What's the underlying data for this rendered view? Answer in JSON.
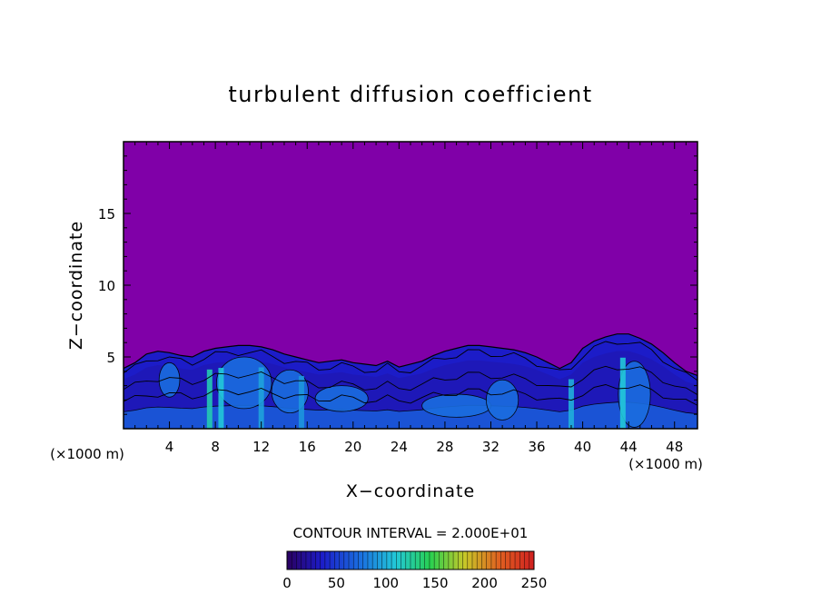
{
  "chart_data": {
    "type": "heatmap",
    "title": "turbulent diffusion coefficient",
    "xlabel": "X−coordinate",
    "ylabel": "Z−coordinate",
    "x_unit_label": "(×1000 m)",
    "z_unit_label": "(×1000 m)",
    "xlim": [
      0,
      50
    ],
    "ylim": [
      0,
      20
    ],
    "x_ticks": [
      {
        "value": 4,
        "label": "4"
      },
      {
        "value": 8,
        "label": "8"
      },
      {
        "value": 12,
        "label": "12"
      },
      {
        "value": 16,
        "label": "16"
      },
      {
        "value": 20,
        "label": "20"
      },
      {
        "value": 24,
        "label": "24"
      },
      {
        "value": 28,
        "label": "28"
      },
      {
        "value": 32,
        "label": "32"
      },
      {
        "value": 36,
        "label": "36"
      },
      {
        "value": 40,
        "label": "40"
      },
      {
        "value": 44,
        "label": "44"
      },
      {
        "value": 48,
        "label": "48"
      }
    ],
    "y_ticks": [
      {
        "value": 5,
        "label": "5"
      },
      {
        "value": 10,
        "label": "10"
      },
      {
        "value": 15,
        "label": "15"
      }
    ],
    "contour_interval_label": "CONTOUR INTERVAL = 2.000E+01",
    "contour_interval": 20,
    "colorbar": {
      "min": 0,
      "max": 250,
      "ticks": [
        {
          "value": 0,
          "label": "0"
        },
        {
          "value": 50,
          "label": "50"
        },
        {
          "value": 100,
          "label": "100"
        },
        {
          "value": 150,
          "label": "150"
        },
        {
          "value": 200,
          "label": "200"
        },
        {
          "value": 250,
          "label": "250"
        }
      ]
    },
    "background_color": "#8000a8",
    "boundary_layer_top": [
      [
        0,
        4.2
      ],
      [
        1,
        4.6
      ],
      [
        2,
        5.2
      ],
      [
        3,
        5.4
      ],
      [
        4,
        5.3
      ],
      [
        5,
        5.1
      ],
      [
        6,
        5.0
      ],
      [
        7,
        5.4
      ],
      [
        8,
        5.6
      ],
      [
        9,
        5.7
      ],
      [
        10,
        5.8
      ],
      [
        11,
        5.8
      ],
      [
        12,
        5.7
      ],
      [
        13,
        5.5
      ],
      [
        14,
        5.2
      ],
      [
        15,
        5.0
      ],
      [
        16,
        4.8
      ],
      [
        17,
        4.6
      ],
      [
        18,
        4.7
      ],
      [
        19,
        4.8
      ],
      [
        20,
        4.6
      ],
      [
        21,
        4.5
      ],
      [
        22,
        4.4
      ],
      [
        23,
        4.7
      ],
      [
        24,
        4.3
      ],
      [
        25,
        4.5
      ],
      [
        26,
        4.7
      ],
      [
        27,
        5.1
      ],
      [
        28,
        5.4
      ],
      [
        29,
        5.6
      ],
      [
        30,
        5.8
      ],
      [
        31,
        5.8
      ],
      [
        32,
        5.7
      ],
      [
        33,
        5.6
      ],
      [
        34,
        5.5
      ],
      [
        35,
        5.3
      ],
      [
        36,
        5.0
      ],
      [
        37,
        4.6
      ],
      [
        38,
        4.2
      ],
      [
        39,
        4.6
      ],
      [
        40,
        5.6
      ],
      [
        41,
        6.1
      ],
      [
        42,
        6.4
      ],
      [
        43,
        6.6
      ],
      [
        44,
        6.6
      ],
      [
        45,
        6.3
      ],
      [
        46,
        5.9
      ],
      [
        47,
        5.3
      ],
      [
        48,
        4.6
      ],
      [
        49,
        4.0
      ],
      [
        50,
        3.7
      ]
    ],
    "interior_value": 35,
    "hotspots": [
      {
        "x": 7.5,
        "value": 120
      },
      {
        "x": 8.5,
        "value": 110
      },
      {
        "x": 12,
        "value": 95
      },
      {
        "x": 15.5,
        "value": 90
      },
      {
        "x": 39,
        "value": 100
      },
      {
        "x": 43.5,
        "value": 110
      }
    ]
  }
}
